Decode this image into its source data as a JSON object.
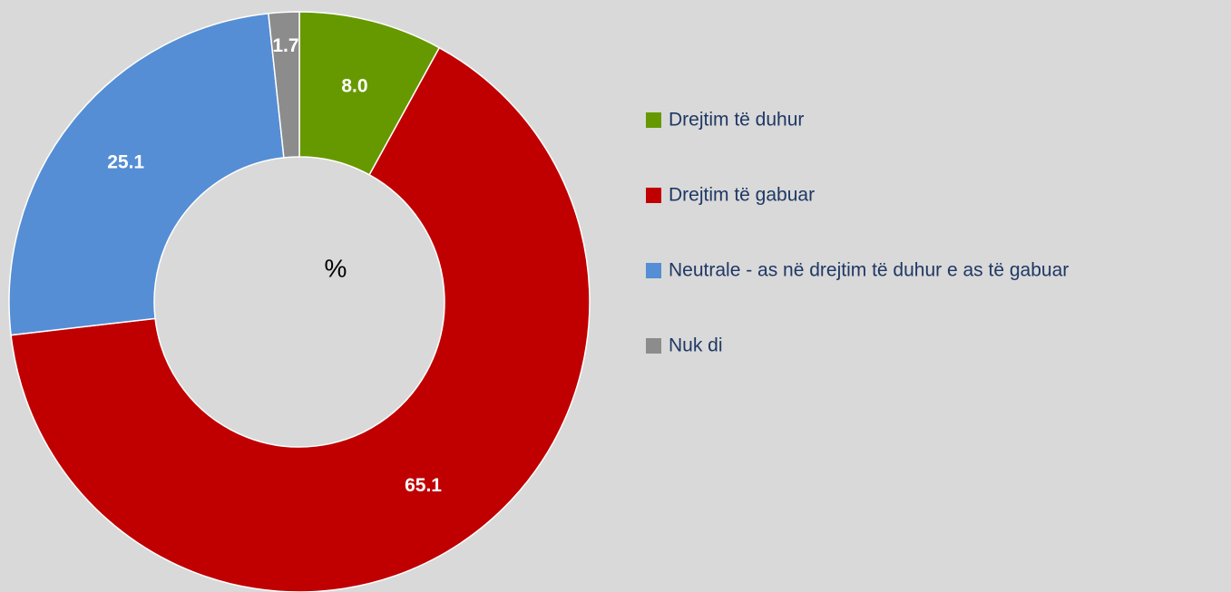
{
  "chart_data": {
    "type": "donut",
    "center_label": "%",
    "categories": [
      "Drejtim të duhur",
      "Drejtim të gabuar",
      "Neutrale - as në drejtim të duhur e as të gabuar",
      "Nuk di"
    ],
    "values": [
      8.0,
      65.1,
      25.1,
      1.7
    ],
    "value_labels": [
      "8.0",
      "65.1",
      "25.1",
      "1.7"
    ],
    "colors": [
      "#669900",
      "#c00000",
      "#558ed5",
      "#8c8c8c"
    ],
    "legend": "right"
  }
}
